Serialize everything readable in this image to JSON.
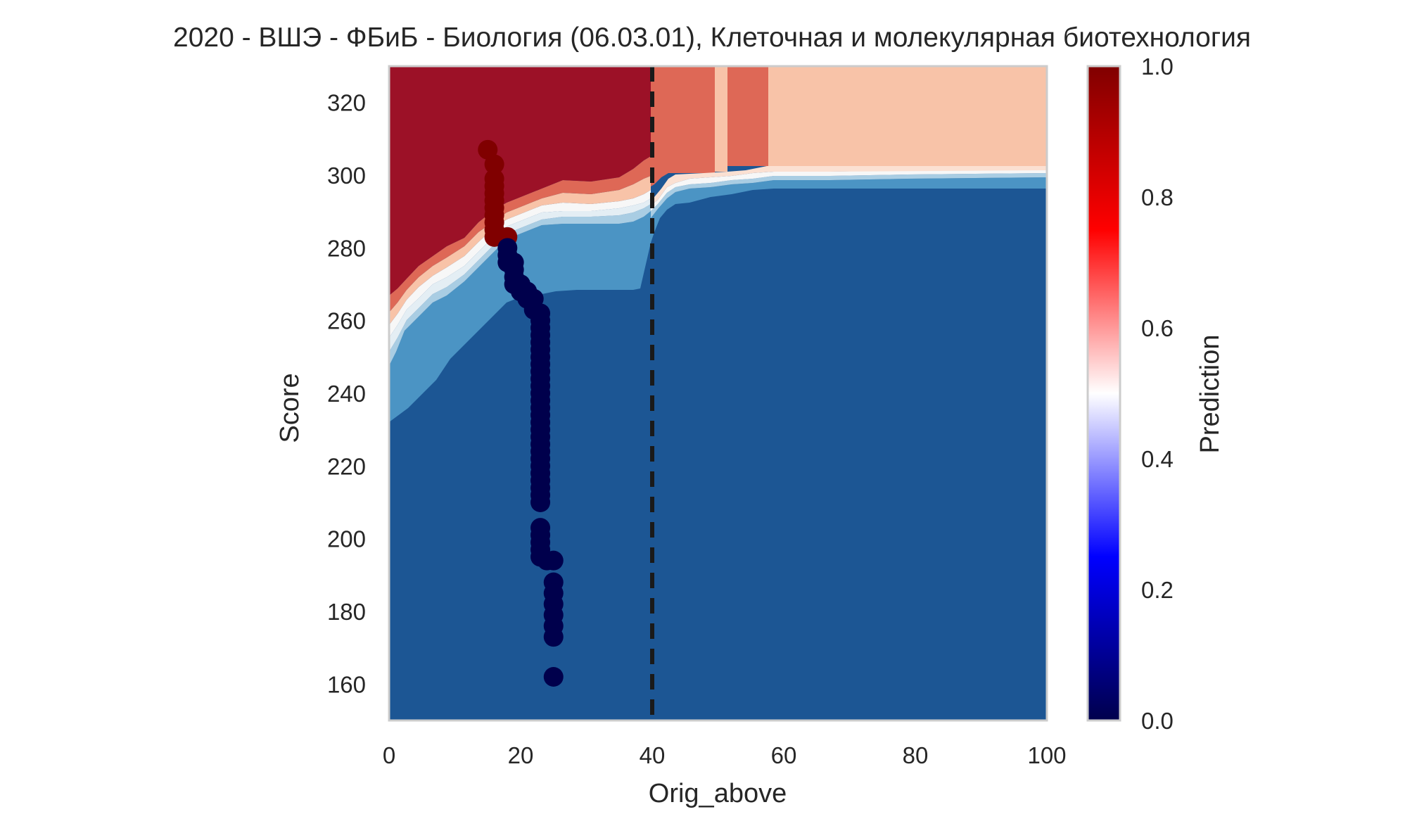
{
  "chart_data": {
    "type": "heatmap",
    "title": "2020 - ВШЭ - ФБиБ - Биология (06.03.01), Клеточная и молекулярная биотехнология",
    "xlabel": "Orig_above",
    "ylabel": "Score",
    "xlim": [
      0,
      100
    ],
    "ylim": [
      150,
      330
    ],
    "xticks": [
      0,
      20,
      40,
      60,
      80,
      100
    ],
    "yticks": [
      160,
      180,
      200,
      220,
      240,
      260,
      280,
      300,
      320
    ],
    "grid": false,
    "colorbar": {
      "label": "Prediction",
      "colormap": "seismic",
      "range": [
        0,
        1
      ],
      "ticks": [
        "0.0",
        "0.2",
        "0.4",
        "0.6",
        "0.8",
        "1.0"
      ]
    },
    "threshold_line": {
      "x": 40,
      "style": "dashed",
      "color": "#1a1a1a"
    },
    "contour_colors": {
      "level_0.0-0.1": "#1c5694",
      "level_0.1-0.2": "#4b94c4",
      "level_0.2-0.3": "#a9cde3",
      "level_0.3-0.4": "#e4eef4",
      "level_0.4-0.5": "#f7f7f7",
      "level_0.5-0.6": "#fbe0d2",
      "level_0.6-0.7": "#f8c3a8",
      "level_0.7-0.8": "#de6856",
      "level_0.8-0.9": "#d1564b",
      "level_0.9-1.0": "#9c1127"
    },
    "contour_regions": [
      {
        "level": 0.95,
        "note": "x 0-40 above ~268-287 boundary",
        "value_band": "0.9-1.0"
      },
      {
        "level": 0.75,
        "x_range": [
          42.5,
          49.5
        ],
        "y_min": 298,
        "value_band": "0.7-0.8"
      },
      {
        "level": 0.75,
        "x_range": [
          51.5,
          57.5
        ],
        "y_min": 300,
        "value_band": "0.7-0.8"
      },
      {
        "level": 0.65,
        "x_range": [
          57.5,
          100
        ],
        "y_min": 302,
        "value_band": "0.6-0.7"
      },
      {
        "level": 0.05,
        "note": "lower region",
        "value_band": "0.0-0.1"
      }
    ],
    "scatter_series": [
      {
        "color_meaning": "prediction 1",
        "color": "#800000",
        "points": [
          [
            15,
            307
          ],
          [
            16,
            303
          ],
          [
            16,
            299
          ],
          [
            16,
            297
          ],
          [
            16,
            295
          ],
          [
            16,
            293
          ],
          [
            16,
            291
          ],
          [
            16,
            289
          ],
          [
            16,
            287
          ],
          [
            16,
            285
          ],
          [
            16,
            283
          ],
          [
            17,
            283
          ],
          [
            18,
            283
          ]
        ]
      },
      {
        "color_meaning": "prediction 0",
        "color": "#00004c",
        "points": [
          [
            18,
            280
          ],
          [
            18,
            278
          ],
          [
            18,
            276
          ],
          [
            19,
            276
          ],
          [
            19,
            274
          ],
          [
            19,
            272
          ],
          [
            19,
            270
          ],
          [
            20,
            270
          ],
          [
            20,
            268
          ],
          [
            21,
            268
          ],
          [
            21,
            266
          ],
          [
            22,
            266
          ],
          [
            22,
            263
          ],
          [
            23,
            262
          ],
          [
            23,
            260
          ],
          [
            23,
            258
          ],
          [
            23,
            256
          ],
          [
            23,
            254
          ],
          [
            23,
            252
          ],
          [
            23,
            250
          ],
          [
            23,
            248
          ],
          [
            23,
            246
          ],
          [
            23,
            244
          ],
          [
            23,
            242
          ],
          [
            23,
            240
          ],
          [
            23,
            238
          ],
          [
            23,
            236
          ],
          [
            23,
            234
          ],
          [
            23,
            232
          ],
          [
            23,
            230
          ],
          [
            23,
            228
          ],
          [
            23,
            226
          ],
          [
            23,
            224
          ],
          [
            23,
            222
          ],
          [
            23,
            220
          ],
          [
            23,
            218
          ],
          [
            23,
            216
          ],
          [
            23,
            214
          ],
          [
            23,
            212
          ],
          [
            23,
            210
          ],
          [
            23,
            203
          ],
          [
            23,
            201
          ],
          [
            23,
            199
          ],
          [
            23,
            197
          ],
          [
            23,
            195
          ],
          [
            24,
            194
          ],
          [
            25,
            194
          ],
          [
            25,
            188
          ],
          [
            25,
            185
          ],
          [
            25,
            182
          ],
          [
            25,
            179
          ],
          [
            25,
            176
          ],
          [
            25,
            173
          ],
          [
            25,
            162
          ]
        ]
      }
    ]
  }
}
